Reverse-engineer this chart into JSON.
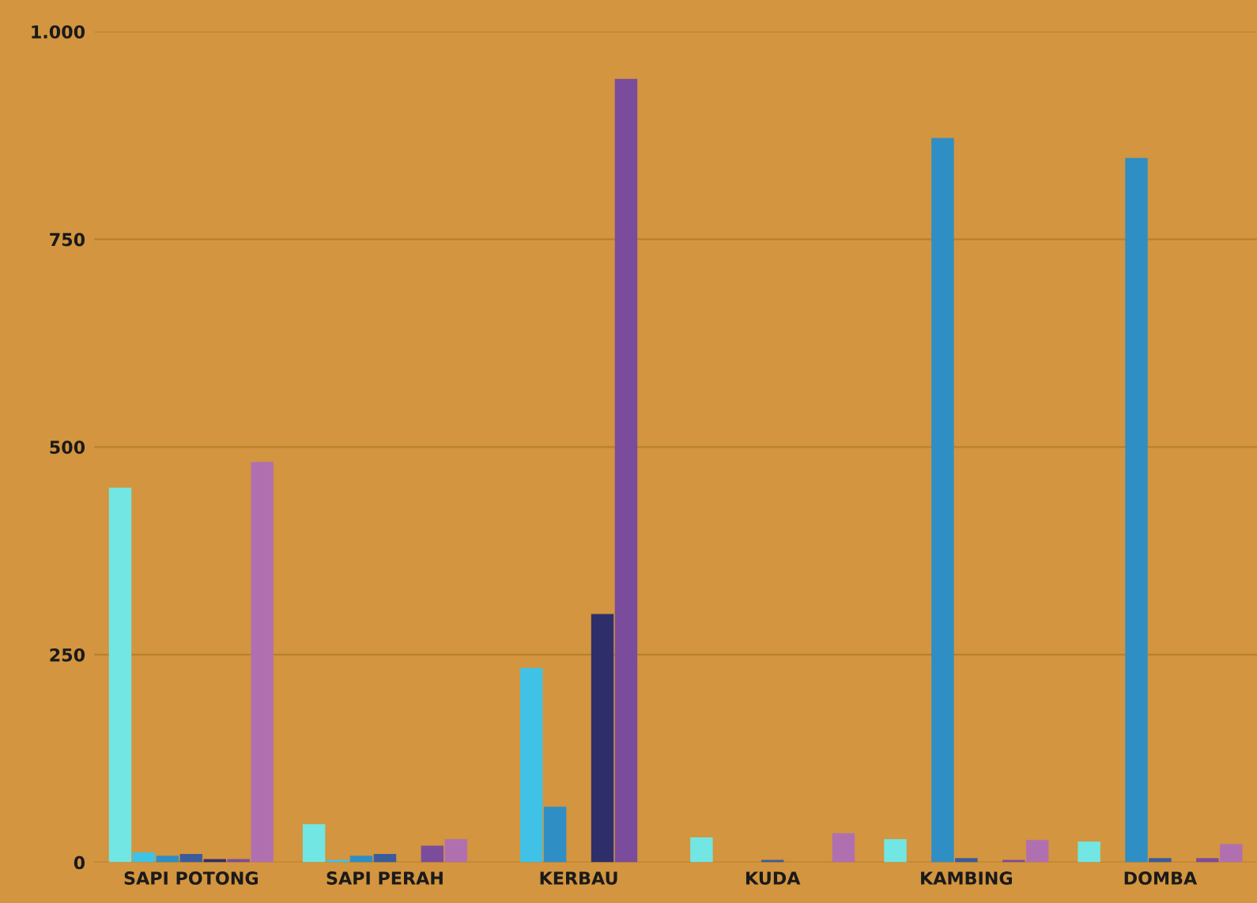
{
  "chart_data": {
    "type": "bar",
    "categories": [
      "SAPI POTONG",
      "SAPI PERAH",
      "KERBAU",
      "KUDA",
      "KAMBING",
      "DOMBA"
    ],
    "series": [
      {
        "color": "#72e6e2",
        "values": [
          451,
          46,
          0,
          30,
          28,
          25
        ]
      },
      {
        "color": "#40c2e6",
        "values": [
          12,
          3,
          234,
          0,
          0,
          0
        ]
      },
      {
        "color": "#2f8ec4",
        "values": [
          8,
          8,
          67,
          0,
          872,
          848
        ]
      },
      {
        "color": "#3b5c9c",
        "values": [
          10,
          10,
          0,
          3,
          5,
          5
        ]
      },
      {
        "color": "#2e2f6a",
        "values": [
          4,
          null,
          299,
          0,
          null,
          null
        ]
      },
      {
        "color": "#7b4c9c",
        "values": [
          4,
          20,
          943,
          0,
          3,
          5
        ]
      },
      {
        "color": "#b070b0",
        "values": [
          482,
          28,
          0,
          35,
          27,
          22
        ]
      }
    ],
    "ylim": [
      0,
      1000
    ],
    "yticks": [
      0,
      250,
      500,
      750,
      {
        "value": 1000,
        "label": "1.000"
      }
    ],
    "grid": "y",
    "legend": false
  }
}
